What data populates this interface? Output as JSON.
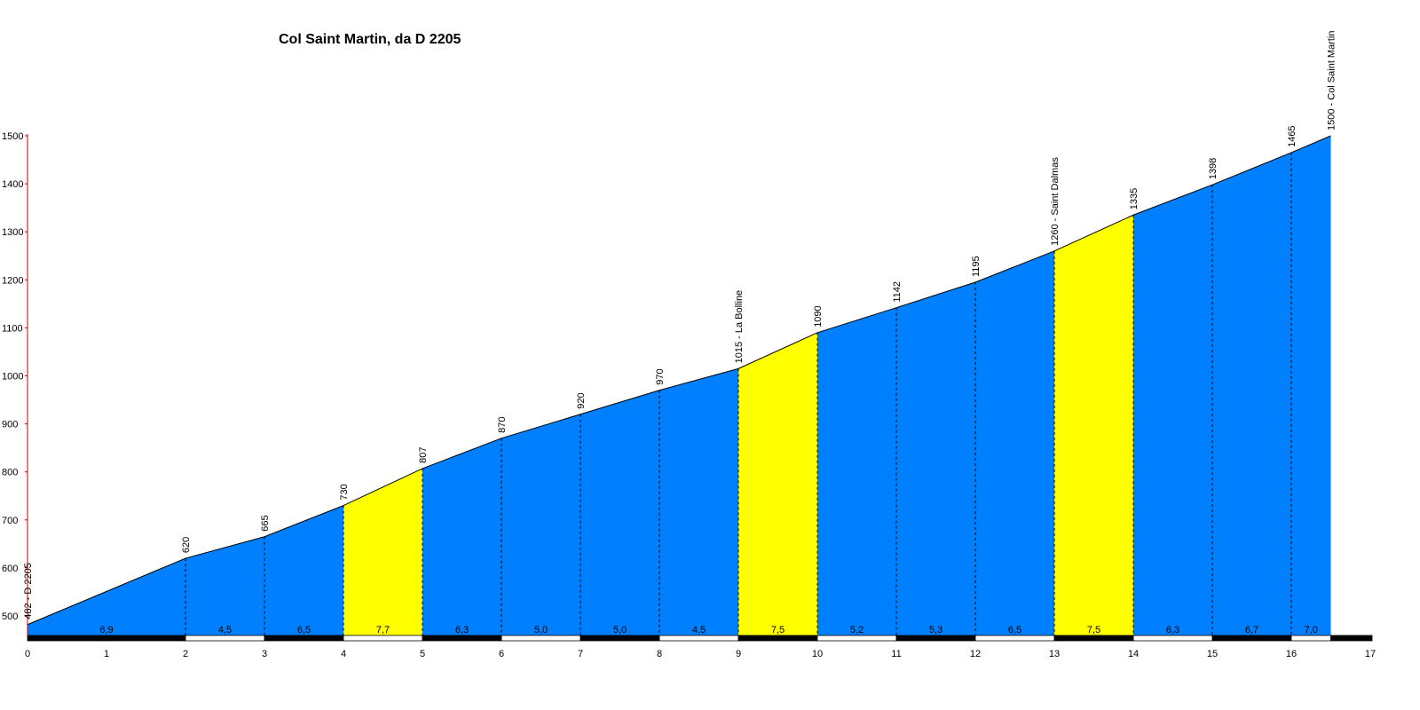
{
  "chart_data": {
    "type": "area",
    "title": "Col Saint Martin, da D 2205",
    "xlabel": "",
    "ylabel": "",
    "xlim": [
      0,
      17
    ],
    "ylim": [
      460,
      1500
    ],
    "x_ticks": [
      0,
      1,
      2,
      3,
      4,
      5,
      6,
      7,
      8,
      9,
      10,
      11,
      12,
      13,
      14,
      15,
      16,
      17
    ],
    "y_ticks": [
      500,
      600,
      700,
      800,
      900,
      1000,
      1100,
      1200,
      1300,
      1400,
      1500
    ],
    "grid": false,
    "colors": {
      "normal": "#0080ff",
      "highlight": "#ffff00",
      "axis_red": "#cc0000"
    },
    "points": [
      {
        "km": 0,
        "alt": 482,
        "label": "482 - D 2205"
      },
      {
        "km": 2,
        "alt": 620,
        "label": "620"
      },
      {
        "km": 3,
        "alt": 665,
        "label": "665"
      },
      {
        "km": 4,
        "alt": 730,
        "label": "730"
      },
      {
        "km": 5,
        "alt": 807,
        "label": "807"
      },
      {
        "km": 6,
        "alt": 870,
        "label": "870"
      },
      {
        "km": 7,
        "alt": 920,
        "label": "920"
      },
      {
        "km": 8,
        "alt": 970,
        "label": "970"
      },
      {
        "km": 9,
        "alt": 1015,
        "label": "1015 - La Bolline"
      },
      {
        "km": 10,
        "alt": 1090,
        "label": "1090"
      },
      {
        "km": 11,
        "alt": 1142,
        "label": "1142"
      },
      {
        "km": 12,
        "alt": 1195,
        "label": "1195"
      },
      {
        "km": 13,
        "alt": 1260,
        "label": "1260 - Saint Dalmas"
      },
      {
        "km": 14,
        "alt": 1335,
        "label": "1335"
      },
      {
        "km": 15,
        "alt": 1398,
        "label": "1398"
      },
      {
        "km": 16,
        "alt": 1465,
        "label": "1465"
      },
      {
        "km": 16.5,
        "alt": 1500,
        "label": "1500 - Col Saint Martin"
      }
    ],
    "segments": [
      {
        "from": 0,
        "to": 2,
        "gradient": "6,9",
        "highlight": false
      },
      {
        "from": 2,
        "to": 3,
        "gradient": "4,5",
        "highlight": false
      },
      {
        "from": 3,
        "to": 4,
        "gradient": "6,5",
        "highlight": false
      },
      {
        "from": 4,
        "to": 5,
        "gradient": "7,7",
        "highlight": true
      },
      {
        "from": 5,
        "to": 6,
        "gradient": "6,3",
        "highlight": false
      },
      {
        "from": 6,
        "to": 7,
        "gradient": "5,0",
        "highlight": false
      },
      {
        "from": 7,
        "to": 8,
        "gradient": "5,0",
        "highlight": false
      },
      {
        "from": 8,
        "to": 9,
        "gradient": "4,5",
        "highlight": false
      },
      {
        "from": 9,
        "to": 10,
        "gradient": "7,5",
        "highlight": true
      },
      {
        "from": 10,
        "to": 11,
        "gradient": "5,2",
        "highlight": false
      },
      {
        "from": 11,
        "to": 12,
        "gradient": "5,3",
        "highlight": false
      },
      {
        "from": 12,
        "to": 13,
        "gradient": "6,5",
        "highlight": false
      },
      {
        "from": 13,
        "to": 14,
        "gradient": "7,5",
        "highlight": true
      },
      {
        "from": 14,
        "to": 15,
        "gradient": "6,3",
        "highlight": false
      },
      {
        "from": 15,
        "to": 16,
        "gradient": "6,7",
        "highlight": false
      },
      {
        "from": 16,
        "to": 16.5,
        "gradient": "7,0",
        "highlight": false
      }
    ]
  }
}
